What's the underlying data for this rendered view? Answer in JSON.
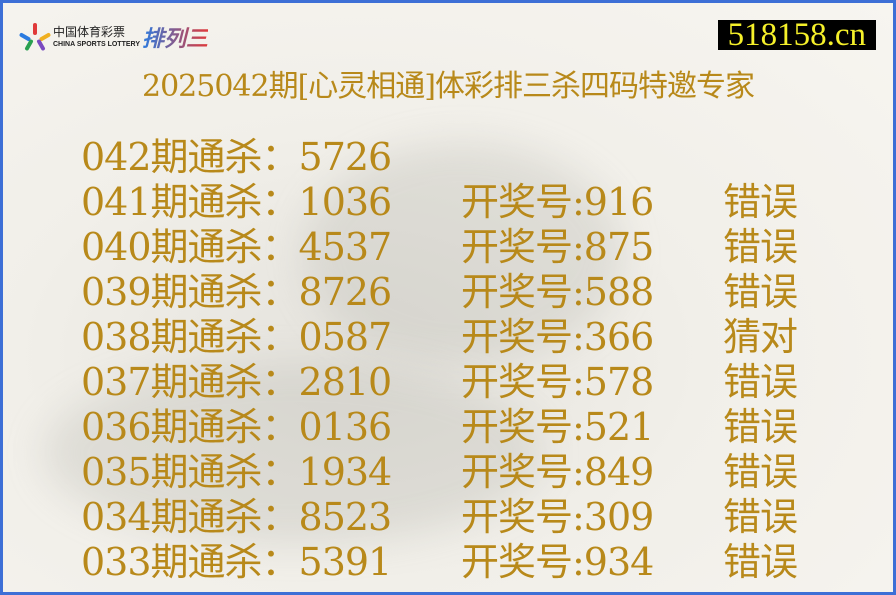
{
  "logo": {
    "cn": "中国体育彩票",
    "en": "CHINA SPORTS LOTTERY",
    "game": "排列三"
  },
  "site": "518158.cn",
  "title": "2025042期[心灵相通]体彩排三杀四码特邀专家",
  "rows": [
    {
      "issue": "042期通杀：5726",
      "draw": "",
      "result": ""
    },
    {
      "issue": "041期通杀：1036",
      "draw": "开奖号:916",
      "result": "错误"
    },
    {
      "issue": "040期通杀：4537",
      "draw": "开奖号:875",
      "result": "错误"
    },
    {
      "issue": "039期通杀：8726",
      "draw": "开奖号:588",
      "result": "错误"
    },
    {
      "issue": "038期通杀：0587",
      "draw": "开奖号:366",
      "result": "猜对"
    },
    {
      "issue": "037期通杀：2810",
      "draw": "开奖号:578",
      "result": "错误"
    },
    {
      "issue": "036期通杀：0136",
      "draw": "开奖号:521",
      "result": "错误"
    },
    {
      "issue": "035期通杀：1934",
      "draw": "开奖号:849",
      "result": "错误"
    },
    {
      "issue": "034期通杀：8523",
      "draw": "开奖号:309",
      "result": "错误"
    },
    {
      "issue": "033期通杀：5391",
      "draw": "开奖号:934",
      "result": "错误"
    }
  ],
  "colors": {
    "text": "#b8891a",
    "border": "#3d6fd6",
    "site_bg": "#000000",
    "site_text": "#f5f02a"
  }
}
